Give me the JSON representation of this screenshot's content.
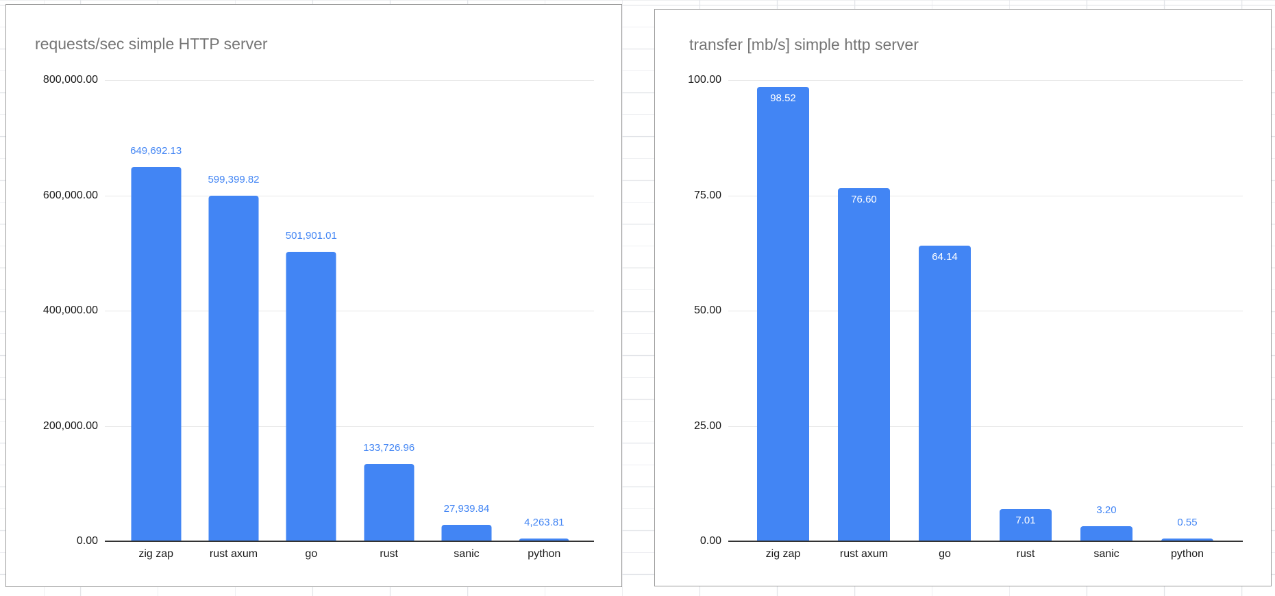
{
  "page": {
    "background_color": "#ffffff",
    "grid_color": "#e2e4e8",
    "card_border_color": "#979797"
  },
  "chart_data": [
    {
      "type": "bar",
      "title": "requests/sec simple HTTP server",
      "categories": [
        "zig zap",
        "rust axum",
        "go",
        "rust",
        "sanic",
        "python"
      ],
      "values": [
        649692.13,
        599399.82,
        501901.01,
        133726.96,
        27939.84,
        4263.81
      ],
      "value_labels": [
        "649,692.13",
        "599,399.82",
        "501,901.01",
        "133,726.96",
        "27,939.84",
        "4,263.81"
      ],
      "value_label_placement": [
        "above",
        "above",
        "above",
        "above",
        "above",
        "above"
      ],
      "xlabel": "",
      "ylabel": "",
      "ylim": [
        0,
        800000
      ],
      "y_ticks": [
        {
          "value": 800000,
          "label": "800,000.00"
        },
        {
          "value": 600000,
          "label": "600,000.00"
        },
        {
          "value": 400000,
          "label": "400,000.00"
        },
        {
          "value": 200000,
          "label": "200,000.00"
        },
        {
          "value": 0,
          "label": "0.00"
        }
      ],
      "grid": true,
      "legend": "none",
      "bar_color": "#4285f4",
      "value_label_color_above": "#4285f4",
      "value_label_color_inside": "#ffffff",
      "title_color": "#757575"
    },
    {
      "type": "bar",
      "title": "transfer [mb/s] simple http server",
      "categories": [
        "zig zap",
        "rust axum",
        "go",
        "rust",
        "sanic",
        "python"
      ],
      "values": [
        98.52,
        76.6,
        64.14,
        7.01,
        3.2,
        0.55
      ],
      "value_labels": [
        "98.52",
        "76.60",
        "64.14",
        "7.01",
        "3.20",
        "0.55"
      ],
      "value_label_placement": [
        "inside",
        "inside",
        "inside",
        "inside",
        "above",
        "above"
      ],
      "xlabel": "",
      "ylabel": "",
      "ylim": [
        0,
        100
      ],
      "y_ticks": [
        {
          "value": 100,
          "label": "100.00"
        },
        {
          "value": 75,
          "label": "75.00"
        },
        {
          "value": 50,
          "label": "50.00"
        },
        {
          "value": 25,
          "label": "25.00"
        },
        {
          "value": 0,
          "label": "0.00"
        }
      ],
      "grid": true,
      "legend": "none",
      "bar_color": "#4285f4",
      "value_label_color_above": "#4285f4",
      "value_label_color_inside": "#ffffff",
      "title_color": "#757575"
    }
  ]
}
